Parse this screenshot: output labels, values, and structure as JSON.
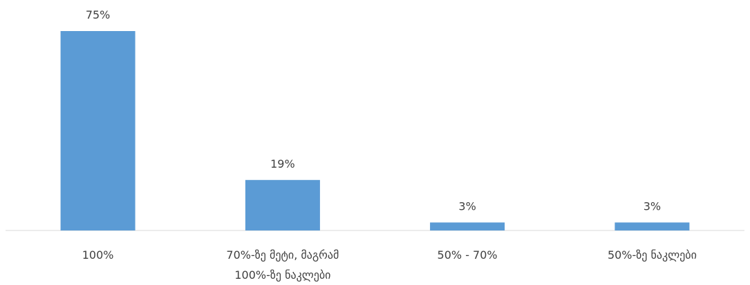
{
  "chart_data": {
    "type": "bar",
    "categories": [
      [
        "100%"
      ],
      [
        "70%-ზე მეტი, მაგრამ",
        "100%-ზე ნაკლები"
      ],
      [
        "50% - 70%"
      ],
      [
        "50%-ზე ნაკლები"
      ]
    ],
    "values": [
      75,
      19,
      3,
      3
    ],
    "data_labels": [
      "75%",
      "19%",
      "3%",
      "3%"
    ],
    "title": "",
    "xlabel": "",
    "ylabel": "",
    "ylim": [
      0,
      75
    ],
    "grid": false,
    "legend": "none",
    "colors": {
      "bar": "#5B9BD5",
      "axis": "#D9D9D9",
      "text": "#404040"
    }
  }
}
